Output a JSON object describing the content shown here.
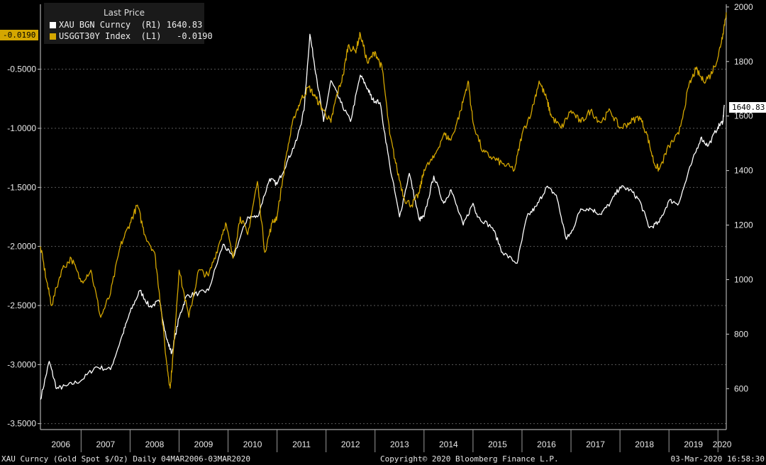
{
  "legend": {
    "title": "Last Price",
    "rows": [
      {
        "label": "XAU BGN Curncy  (R1) 1640.83",
        "color": "#ffffff"
      },
      {
        "label": "USGGT30Y Index  (L1)   -0.0190",
        "color": "#d4a600"
      }
    ]
  },
  "tags": {
    "left": "-0.0190",
    "right": "1640.83"
  },
  "footer": {
    "left": "XAU Curncy (Gold Spot  $/Oz)  Daily 04MAR2006-03MAR2020",
    "center": "Copyright© 2020 Bloomberg Finance L.P.",
    "right": "03-Mar-2020 16:58:30"
  },
  "chart_data": {
    "type": "line",
    "x_ticks": [
      "2006",
      "2007",
      "2008",
      "2009",
      "2010",
      "2011",
      "2012",
      "2013",
      "2014",
      "2015",
      "2016",
      "2017",
      "2018",
      "2019",
      "2020"
    ],
    "x_range": [
      2006.17,
      2020.17
    ],
    "y_left": {
      "ticks": [
        "-0.5000",
        "-1.0000",
        "-1.5000",
        "-2.0000",
        "-2.5000",
        "-3.0000",
        "-3.5000"
      ],
      "range": [
        -3.55,
        0.05
      ]
    },
    "y_right": {
      "ticks": [
        "2000",
        "1800",
        "1600",
        "1400",
        "1200",
        "1000",
        "800",
        "600"
      ],
      "range": [
        450,
        2010
      ]
    },
    "grid": true,
    "legend_position": "top-left",
    "series": [
      {
        "name": "XAU BGN Curncy",
        "axis": "right",
        "color": "#ffffff",
        "points": [
          [
            2006.17,
            560
          ],
          [
            2006.35,
            700
          ],
          [
            2006.5,
            600
          ],
          [
            2006.7,
            610
          ],
          [
            2007.0,
            630
          ],
          [
            2007.3,
            680
          ],
          [
            2007.6,
            670
          ],
          [
            2007.85,
            800
          ],
          [
            2008.0,
            880
          ],
          [
            2008.2,
            960
          ],
          [
            2008.4,
            900
          ],
          [
            2008.6,
            920
          ],
          [
            2008.75,
            780
          ],
          [
            2008.85,
            730
          ],
          [
            2009.0,
            860
          ],
          [
            2009.15,
            940
          ],
          [
            2009.4,
            950
          ],
          [
            2009.6,
            960
          ],
          [
            2009.9,
            1130
          ],
          [
            2010.1,
            1080
          ],
          [
            2010.4,
            1230
          ],
          [
            2010.6,
            1230
          ],
          [
            2010.85,
            1370
          ],
          [
            2011.0,
            1350
          ],
          [
            2011.2,
            1430
          ],
          [
            2011.4,
            1510
          ],
          [
            2011.55,
            1620
          ],
          [
            2011.67,
            1900
          ],
          [
            2011.8,
            1750
          ],
          [
            2011.95,
            1580
          ],
          [
            2012.1,
            1730
          ],
          [
            2012.3,
            1650
          ],
          [
            2012.5,
            1580
          ],
          [
            2012.7,
            1750
          ],
          [
            2012.85,
            1700
          ],
          [
            2012.95,
            1660
          ],
          [
            2013.1,
            1650
          ],
          [
            2013.3,
            1420
          ],
          [
            2013.5,
            1230
          ],
          [
            2013.7,
            1390
          ],
          [
            2013.9,
            1220
          ],
          [
            2014.0,
            1230
          ],
          [
            2014.2,
            1380
          ],
          [
            2014.4,
            1280
          ],
          [
            2014.55,
            1330
          ],
          [
            2014.8,
            1200
          ],
          [
            2015.0,
            1280
          ],
          [
            2015.1,
            1230
          ],
          [
            2015.4,
            1190
          ],
          [
            2015.6,
            1100
          ],
          [
            2015.9,
            1060
          ],
          [
            2016.1,
            1230
          ],
          [
            2016.3,
            1270
          ],
          [
            2016.5,
            1340
          ],
          [
            2016.7,
            1310
          ],
          [
            2016.9,
            1150
          ],
          [
            2017.0,
            1170
          ],
          [
            2017.2,
            1260
          ],
          [
            2017.4,
            1260
          ],
          [
            2017.6,
            1240
          ],
          [
            2017.8,
            1280
          ],
          [
            2018.0,
            1340
          ],
          [
            2018.2,
            1330
          ],
          [
            2018.4,
            1290
          ],
          [
            2018.6,
            1190
          ],
          [
            2018.8,
            1210
          ],
          [
            2019.0,
            1290
          ],
          [
            2019.2,
            1280
          ],
          [
            2019.45,
            1420
          ],
          [
            2019.65,
            1520
          ],
          [
            2019.8,
            1490
          ],
          [
            2020.0,
            1560
          ],
          [
            2020.1,
            1580
          ],
          [
            2020.13,
            1640.83
          ]
        ]
      },
      {
        "name": "USGGT30Y Index",
        "axis": "left",
        "color": "#d4a600",
        "points": [
          [
            2006.17,
            -2.0
          ],
          [
            2006.3,
            -2.3
          ],
          [
            2006.4,
            -2.5
          ],
          [
            2006.6,
            -2.2
          ],
          [
            2006.8,
            -2.1
          ],
          [
            2007.0,
            -2.3
          ],
          [
            2007.2,
            -2.2
          ],
          [
            2007.4,
            -2.6
          ],
          [
            2007.6,
            -2.4
          ],
          [
            2007.8,
            -2.0
          ],
          [
            2008.0,
            -1.8
          ],
          [
            2008.15,
            -1.65
          ],
          [
            2008.3,
            -1.9
          ],
          [
            2008.5,
            -2.05
          ],
          [
            2008.6,
            -2.4
          ],
          [
            2008.75,
            -3.0
          ],
          [
            2008.82,
            -3.2
          ],
          [
            2008.9,
            -2.8
          ],
          [
            2009.0,
            -2.2
          ],
          [
            2009.2,
            -2.6
          ],
          [
            2009.4,
            -2.2
          ],
          [
            2009.6,
            -2.25
          ],
          [
            2009.8,
            -2.0
          ],
          [
            2009.95,
            -1.8
          ],
          [
            2010.1,
            -2.1
          ],
          [
            2010.25,
            -1.75
          ],
          [
            2010.4,
            -1.9
          ],
          [
            2010.6,
            -1.45
          ],
          [
            2010.75,
            -2.05
          ],
          [
            2010.9,
            -1.8
          ],
          [
            2011.0,
            -1.75
          ],
          [
            2011.2,
            -1.2
          ],
          [
            2011.35,
            -0.9
          ],
          [
            2011.5,
            -0.75
          ],
          [
            2011.65,
            -0.65
          ],
          [
            2011.8,
            -0.75
          ],
          [
            2011.95,
            -0.85
          ],
          [
            2012.1,
            -0.95
          ],
          [
            2012.2,
            -0.75
          ],
          [
            2012.35,
            -0.55
          ],
          [
            2012.45,
            -0.3
          ],
          [
            2012.6,
            -0.35
          ],
          [
            2012.7,
            -0.2
          ],
          [
            2012.85,
            -0.45
          ],
          [
            2013.0,
            -0.35
          ],
          [
            2013.15,
            -0.5
          ],
          [
            2013.3,
            -1.05
          ],
          [
            2013.45,
            -1.35
          ],
          [
            2013.6,
            -1.6
          ],
          [
            2013.75,
            -1.65
          ],
          [
            2013.9,
            -1.55
          ],
          [
            2014.0,
            -1.35
          ],
          [
            2014.2,
            -1.25
          ],
          [
            2014.4,
            -1.05
          ],
          [
            2014.55,
            -1.1
          ],
          [
            2014.75,
            -0.85
          ],
          [
            2014.9,
            -0.6
          ],
          [
            2015.0,
            -0.95
          ],
          [
            2015.2,
            -1.2
          ],
          [
            2015.4,
            -1.25
          ],
          [
            2015.6,
            -1.3
          ],
          [
            2015.85,
            -1.35
          ],
          [
            2016.0,
            -1.05
          ],
          [
            2016.2,
            -0.85
          ],
          [
            2016.35,
            -0.6
          ],
          [
            2016.5,
            -0.75
          ],
          [
            2016.6,
            -0.9
          ],
          [
            2016.8,
            -1.0
          ],
          [
            2017.0,
            -0.85
          ],
          [
            2017.2,
            -0.95
          ],
          [
            2017.4,
            -0.85
          ],
          [
            2017.6,
            -0.95
          ],
          [
            2017.8,
            -0.85
          ],
          [
            2018.0,
            -1.0
          ],
          [
            2018.2,
            -0.95
          ],
          [
            2018.4,
            -0.9
          ],
          [
            2018.55,
            -1.05
          ],
          [
            2018.7,
            -1.3
          ],
          [
            2018.8,
            -1.35
          ],
          [
            2019.0,
            -1.15
          ],
          [
            2019.2,
            -1.05
          ],
          [
            2019.4,
            -0.65
          ],
          [
            2019.55,
            -0.5
          ],
          [
            2019.7,
            -0.6
          ],
          [
            2019.85,
            -0.55
          ],
          [
            2020.0,
            -0.4
          ],
          [
            2020.1,
            -0.2
          ],
          [
            2020.17,
            -0.019
          ]
        ]
      }
    ]
  }
}
